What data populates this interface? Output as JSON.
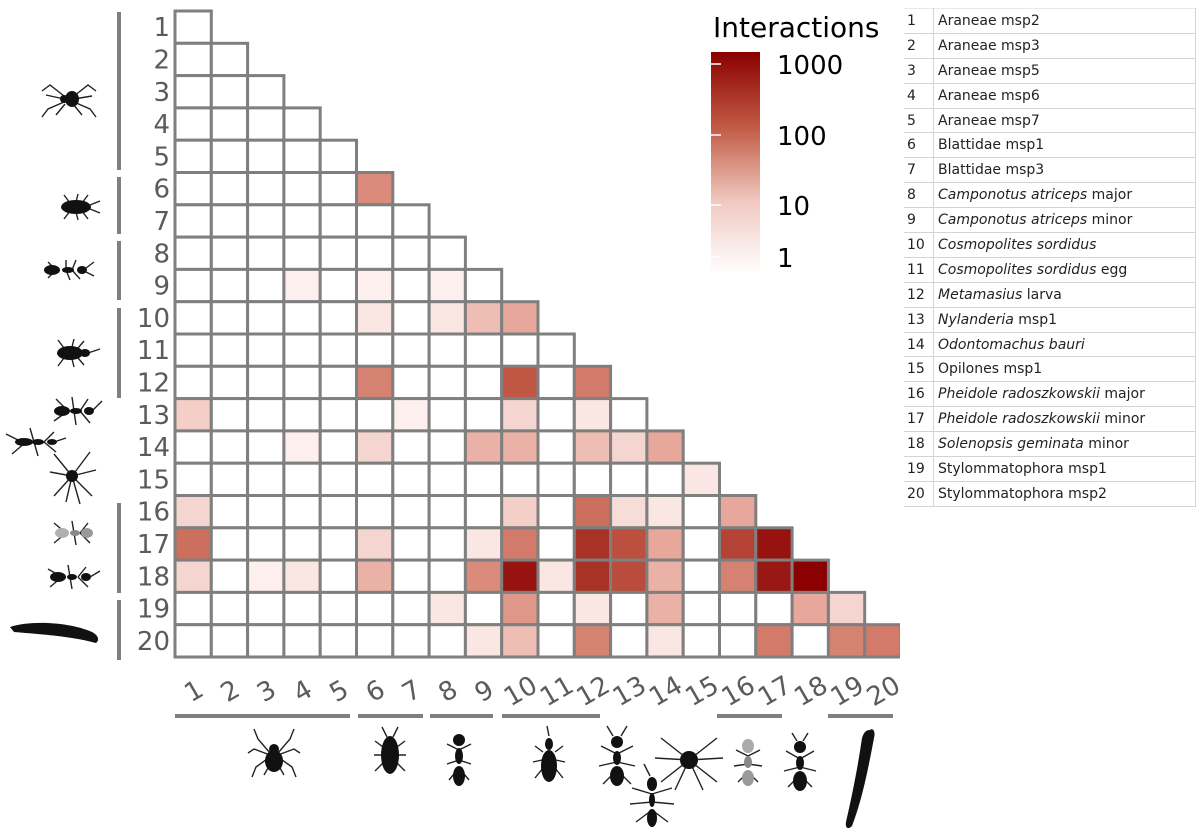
{
  "chart_data": {
    "type": "heatmap",
    "layout": "lower-triangle",
    "legend": {
      "title": "Interactions",
      "scale": "log",
      "ticks": [
        "1000",
        "100",
        "10",
        "1"
      ],
      "color_low": "#ffffff",
      "color_high": "#8b0000",
      "placement": "top-right"
    },
    "row_labels": [
      "1",
      "2",
      "3",
      "4",
      "5",
      "6",
      "7",
      "8",
      "9",
      "10",
      "11",
      "12",
      "13",
      "14",
      "15",
      "16",
      "17",
      "18",
      "19",
      "20"
    ],
    "col_labels": [
      "1",
      "2",
      "3",
      "4",
      "5",
      "6",
      "7",
      "8",
      "9",
      "10",
      "11",
      "12",
      "13",
      "14",
      "15",
      "16",
      "17",
      "18",
      "19",
      "20"
    ],
    "values": [
      [
        0
      ],
      [
        0,
        0
      ],
      [
        0,
        0,
        0
      ],
      [
        0,
        0,
        0,
        0
      ],
      [
        0,
        0,
        0,
        0,
        0
      ],
      [
        0,
        0,
        0,
        0,
        0,
        40
      ],
      [
        0,
        0,
        0,
        0,
        0,
        0,
        0
      ],
      [
        0,
        0,
        0,
        0,
        0,
        0,
        0,
        0
      ],
      [
        0,
        0,
        0,
        2,
        0,
        2,
        0,
        2,
        0
      ],
      [
        0,
        0,
        0,
        0,
        0,
        3,
        0,
        3,
        10,
        20
      ],
      [
        0,
        0,
        0,
        0,
        0,
        0,
        0,
        0,
        0,
        0,
        0
      ],
      [
        0,
        0,
        0,
        0,
        0,
        50,
        0,
        0,
        0,
        150,
        0,
        60
      ],
      [
        6,
        0,
        0,
        0,
        0,
        0,
        2,
        0,
        0,
        5,
        0,
        3,
        0
      ],
      [
        0,
        0,
        0,
        2,
        0,
        5,
        0,
        0,
        15,
        15,
        0,
        10,
        5,
        20
      ],
      [
        0,
        0,
        0,
        0,
        0,
        0,
        0,
        0,
        0,
        0,
        0,
        0,
        0,
        0,
        3
      ],
      [
        5,
        0,
        0,
        0,
        0,
        0,
        0,
        0,
        0,
        6,
        0,
        80,
        4,
        3,
        0,
        20
      ],
      [
        80,
        0,
        0,
        0,
        0,
        5,
        0,
        0,
        3,
        60,
        0,
        400,
        180,
        20,
        0,
        250,
        900
      ],
      [
        5,
        0,
        2,
        3,
        0,
        15,
        0,
        0,
        40,
        900,
        3,
        400,
        200,
        15,
        0,
        50,
        800,
        1500
      ],
      [
        0,
        0,
        0,
        0,
        0,
        0,
        0,
        3,
        0,
        30,
        0,
        3,
        0,
        15,
        0,
        0,
        0,
        20,
        5
      ],
      [
        0,
        0,
        0,
        0,
        0,
        0,
        0,
        0,
        3,
        10,
        0,
        50,
        0,
        3,
        0,
        0,
        60,
        0,
        50,
        60
      ]
    ],
    "groups": [
      "spider",
      "cockroach",
      "ant",
      "weevil",
      "ant",
      "harvestman",
      "ant",
      "ant",
      "slug"
    ],
    "key": [
      {
        "n": "1",
        "parts": [
          {
            "t": "Araneae msp2",
            "i": false
          }
        ]
      },
      {
        "n": "2",
        "parts": [
          {
            "t": "Araneae msp3",
            "i": false
          }
        ]
      },
      {
        "n": "3",
        "parts": [
          {
            "t": "Araneae msp5",
            "i": false
          }
        ]
      },
      {
        "n": "4",
        "parts": [
          {
            "t": "Araneae msp6",
            "i": false
          }
        ]
      },
      {
        "n": "5",
        "parts": [
          {
            "t": "Araneae msp7",
            "i": false
          }
        ]
      },
      {
        "n": "6",
        "parts": [
          {
            "t": "Blattidae msp1",
            "i": false
          }
        ]
      },
      {
        "n": "7",
        "parts": [
          {
            "t": "Blattidae msp3",
            "i": false
          }
        ]
      },
      {
        "n": "8",
        "parts": [
          {
            "t": "Camponotus atriceps",
            "i": true
          },
          {
            "t": " major",
            "i": false
          }
        ]
      },
      {
        "n": "9",
        "parts": [
          {
            "t": "Camponotus atriceps",
            "i": true
          },
          {
            "t": " minor",
            "i": false
          }
        ]
      },
      {
        "n": "10",
        "parts": [
          {
            "t": "Cosmopolites sordidus",
            "i": true
          }
        ]
      },
      {
        "n": "11",
        "parts": [
          {
            "t": "Cosmopolites sordidus",
            "i": true
          },
          {
            "t": " egg",
            "i": false
          }
        ]
      },
      {
        "n": "12",
        "parts": [
          {
            "t": "Metamasius",
            "i": true
          },
          {
            "t": " larva",
            "i": false
          }
        ]
      },
      {
        "n": "13",
        "parts": [
          {
            "t": "Nylanderia",
            "i": true
          },
          {
            "t": " msp1",
            "i": false
          }
        ]
      },
      {
        "n": "14",
        "parts": [
          {
            "t": "Odontomachus bauri",
            "i": true
          }
        ]
      },
      {
        "n": "15",
        "parts": [
          {
            "t": "Opilones msp1",
            "i": false
          }
        ]
      },
      {
        "n": "16",
        "parts": [
          {
            "t": "Pheidole radoszkowskii",
            "i": true
          },
          {
            "t": " major",
            "i": false
          }
        ]
      },
      {
        "n": "17",
        "parts": [
          {
            "t": "Pheidole radoszkowskii",
            "i": true
          },
          {
            "t": " minor",
            "i": false
          }
        ]
      },
      {
        "n": "18",
        "parts": [
          {
            "t": "Solenopsis geminata",
            "i": true
          },
          {
            "t": " minor",
            "i": false
          }
        ]
      },
      {
        "n": "19",
        "parts": [
          {
            "t": "Stylommatophora msp1",
            "i": false
          }
        ]
      },
      {
        "n": "20",
        "parts": [
          {
            "t": "Stylommatophora msp2",
            "i": false
          }
        ]
      }
    ]
  }
}
